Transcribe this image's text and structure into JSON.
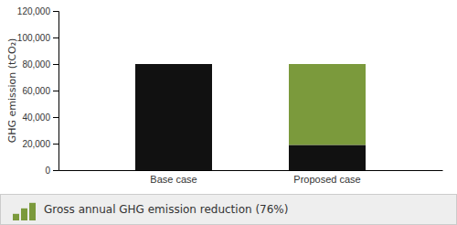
{
  "chart_data": {
    "type": "bar",
    "categories": [
      "Base case",
      "Proposed case"
    ],
    "series": [
      {
        "color": "#111111",
        "values": [
          80000,
          19000
        ]
      },
      {
        "name": "Gross annual GHG emission reduction (76%)",
        "color": "#7b9a3c",
        "values": [
          null,
          61000
        ]
      }
    ],
    "stacked": true,
    "ylabel": "GHG emission (tCO₂)",
    "ylim": [
      0,
      120000
    ],
    "yticks": [
      0,
      {
        "value": 20000,
        "label": "20,000"
      },
      {
        "value": 40000,
        "label": "40,000"
      },
      {
        "value": 60000,
        "label": "60,000"
      },
      {
        "value": 80000,
        "label": "80,000"
      },
      {
        "value": 100000,
        "label": "100,000"
      },
      {
        "value": 120000,
        "label": "120,000"
      }
    ],
    "grid": false,
    "legend": "bottom"
  }
}
